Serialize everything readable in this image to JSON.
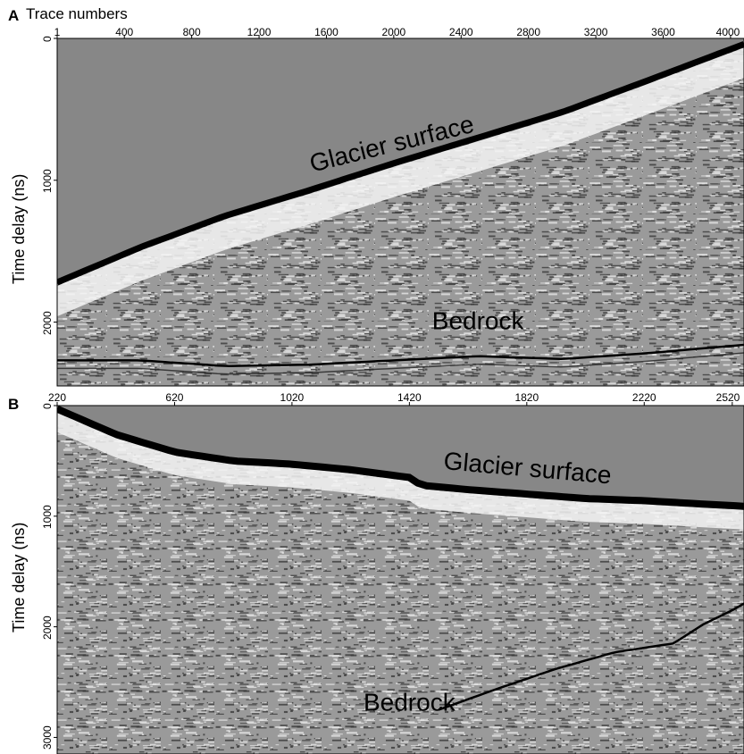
{
  "figure": {
    "colors": {
      "background": "#ffffff",
      "air": "#878787",
      "reflector": "#000000",
      "firn": "#f4f4f4",
      "noise_mid": "#9a9a9a"
    }
  },
  "chart_data": [
    {
      "panel": "A",
      "type": "heatmap",
      "xlabel": "Trace numbers",
      "ylabel": "Time delay (ns)",
      "x_ticks": [
        "1",
        "400",
        "800",
        "1200",
        "1600",
        "2000",
        "2400",
        "2800",
        "3200",
        "3600",
        "4000"
      ],
      "y_ticks": [
        "0",
        "1000",
        "2000"
      ],
      "xlim": [
        1,
        4080
      ],
      "ylim": [
        0,
        2450
      ],
      "annotations": [
        {
          "text": "Glacier surface",
          "x": 2000,
          "y": 800,
          "rotation": -14
        },
        {
          "text": "Bedrock",
          "x": 2500,
          "y": 2050,
          "rotation": 0
        }
      ],
      "surface": {
        "x": [
          1,
          500,
          1000,
          1500,
          2000,
          2500,
          3000,
          3500,
          4080
        ],
        "y": [
          1720,
          1470,
          1250,
          1070,
          880,
          700,
          520,
          300,
          40
        ]
      },
      "bed": {
        "x": [
          1,
          500,
          1000,
          1500,
          2000,
          2500,
          3000,
          3500,
          4080
        ],
        "y": [
          2270,
          2270,
          2310,
          2300,
          2270,
          2240,
          2260,
          2220,
          2160
        ]
      }
    },
    {
      "panel": "B",
      "type": "heatmap",
      "xlabel": "",
      "ylabel": "Time delay (ns)",
      "x_ticks": [
        "220",
        "620",
        "1020",
        "1420",
        "1820",
        "2220",
        "2520"
      ],
      "y_ticks": [
        "0",
        "1000",
        "2000",
        "3000"
      ],
      "xlim": [
        220,
        2560
      ],
      "ylim": [
        0,
        3150
      ],
      "annotations": [
        {
          "text": "Glacier surface",
          "x": 1820,
          "y": 640,
          "rotation": 5
        },
        {
          "text": "Bedrock",
          "x": 1420,
          "y": 2760,
          "rotation": 0
        }
      ],
      "surface": {
        "x": [
          220,
          420,
          620,
          820,
          1020,
          1220,
          1420,
          1460,
          1620,
          1820,
          2020,
          2220,
          2420,
          2560
        ],
        "y": [
          30,
          260,
          420,
          500,
          530,
          580,
          650,
          720,
          760,
          800,
          840,
          860,
          890,
          910
        ]
      },
      "bed": {
        "x": [
          1520,
          1720,
          1920,
          2120,
          2320,
          2420,
          2520,
          2560
        ],
        "y": [
          2750,
          2560,
          2380,
          2230,
          2150,
          1980,
          1850,
          1790
        ]
      }
    }
  ]
}
